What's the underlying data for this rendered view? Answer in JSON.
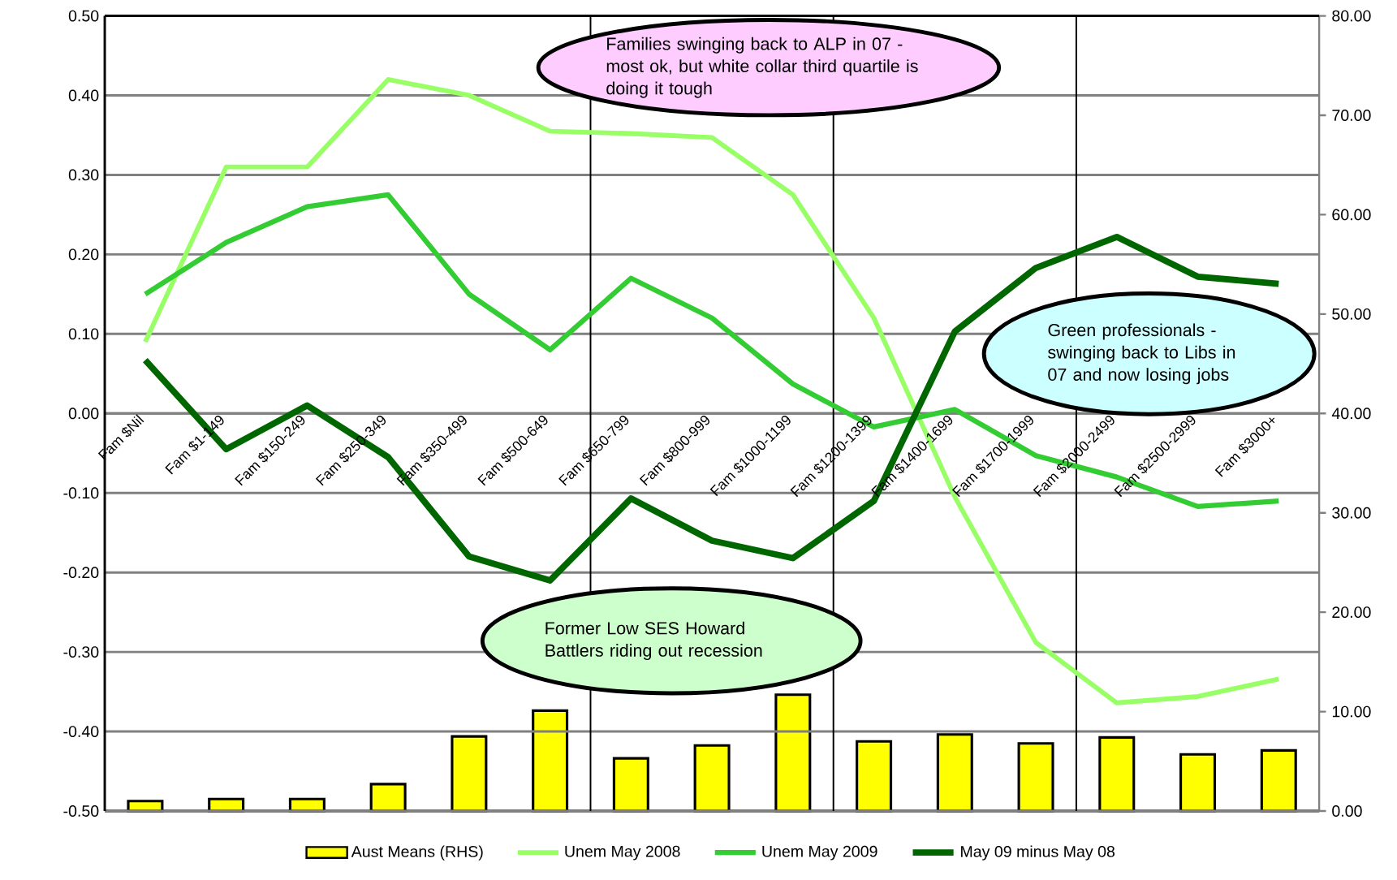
{
  "chart_data": {
    "type": "line",
    "categories": [
      "Fam $Nil",
      "Fam $1-149",
      "Fam $150-249",
      "Fam $250-349",
      "Fam $350-499",
      "Fam $500-649",
      "Fam $650-799",
      "Fam $800-999",
      "Fam $1000-1199",
      "Fam $1200-1399",
      "Fam $1400-1699",
      "Fam $1700-1999",
      "Fam $2000-2499",
      "Fam $2500-2999",
      "Fam $3000+"
    ],
    "series": [
      {
        "name": "Aust Means (RHS)",
        "type": "bar",
        "axis": "y2",
        "color": "#ffff00",
        "values": [
          1.0,
          1.2,
          1.2,
          2.7,
          7.5,
          10.1,
          5.3,
          6.6,
          11.7,
          7.0,
          7.7,
          6.8,
          7.4,
          5.7,
          6.1
        ]
      },
      {
        "name": "Unem May 2008",
        "color": "#99ff66",
        "values": [
          0.09,
          0.31,
          0.31,
          0.42,
          0.4,
          0.355,
          0.352,
          0.347,
          0.275,
          0.12,
          -0.105,
          -0.288,
          -0.364,
          -0.356,
          -0.334
        ]
      },
      {
        "name": "Unem May 2009",
        "color": "#33cc33",
        "values": [
          0.15,
          0.215,
          0.26,
          0.275,
          0.15,
          0.08,
          0.17,
          0.12,
          0.037,
          -0.017,
          0.005,
          -0.053,
          -0.08,
          -0.117,
          -0.11
        ]
      },
      {
        "name": "May 09 minus May 08",
        "color": "#006600",
        "values": [
          0.067,
          -0.045,
          0.01,
          -0.055,
          -0.18,
          -0.21,
          -0.107,
          -0.16,
          -0.182,
          -0.11,
          0.103,
          0.183,
          0.222,
          0.172,
          0.163
        ]
      }
    ],
    "ylim": [
      -0.5,
      0.5
    ],
    "yticks": [
      {
        "value": -0.5,
        "label": "-0.50"
      },
      {
        "value": -0.4,
        "label": "-0.40"
      },
      {
        "value": -0.3,
        "label": "-0.30"
      },
      {
        "value": -0.2,
        "label": "-0.20"
      },
      {
        "value": -0.1,
        "label": "-0.10"
      },
      {
        "value": 0,
        "label": "0.00"
      },
      {
        "value": 0.1,
        "label": "0.10"
      },
      {
        "value": 0.2,
        "label": "0.20"
      },
      {
        "value": 0.3,
        "label": "0.30"
      },
      {
        "value": 0.4,
        "label": "0.40"
      },
      {
        "value": 0.5,
        "label": "0.50"
      }
    ],
    "y2lim": [
      0,
      80
    ],
    "y2ticks": [
      {
        "value": 0,
        "label": "0.00"
      },
      {
        "value": 10,
        "label": "10.00"
      },
      {
        "value": 20,
        "label": "20.00"
      },
      {
        "value": 30,
        "label": "30.00"
      },
      {
        "value": 40,
        "label": "40.00"
      },
      {
        "value": 50,
        "label": "50.00"
      },
      {
        "value": 60,
        "label": "60.00"
      },
      {
        "value": 70,
        "label": "70.00"
      },
      {
        "value": 80,
        "label": "80.00"
      }
    ],
    "grid": "y",
    "legend": "bottom",
    "marker": "none",
    "annotations": [
      "Families swinging back to ALP in 07 - most ok, but white collar third quartile is doing it tough",
      "Green professionals - swinging back to Libs in 07 and now losing jobs",
      "Former Low SES Howard Battlers riding out recession"
    ]
  }
}
